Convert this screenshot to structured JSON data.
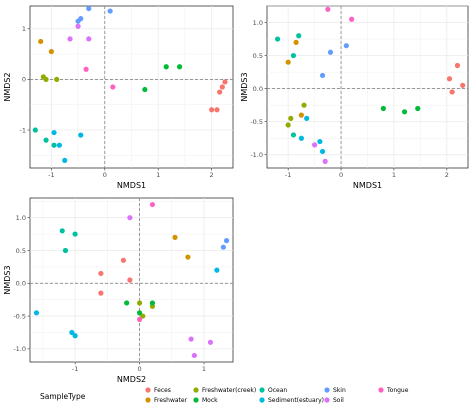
{
  "colors": {
    "Feces": "#F8766D",
    "Freshwater": "#D39200",
    "Freshwater(creek)": "#93AA00",
    "Mock": "#00BA38",
    "Ocean": "#00C19F",
    "Sediment(estuary)": "#00B9E3",
    "Skin": "#619CFF",
    "Soil": "#DB72FB",
    "Tongue": "#FF61C3"
  },
  "legend": {
    "title": "SampleType",
    "items": [
      "Feces",
      "Freshwater",
      "Freshwater(creek)",
      "Mock",
      "Ocean",
      "Sediment(estuary)",
      "Skin",
      "Soil",
      "Tongue"
    ]
  },
  "chart_data": [
    {
      "type": "scatter",
      "xlabel": "NMDS1",
      "ylabel": "NMDS2",
      "xlim": [
        -1.4,
        2.4
      ],
      "ylim": [
        -1.75,
        1.45
      ],
      "xticks": [
        -1,
        0,
        1,
        2
      ],
      "yticks": [
        -1,
        0,
        1
      ],
      "grid": true,
      "zero_lines": true,
      "points": [
        {
          "group": "Feces",
          "x": 2.0,
          "y": -0.6
        },
        {
          "group": "Feces",
          "x": 2.1,
          "y": -0.6
        },
        {
          "group": "Feces",
          "x": 2.15,
          "y": -0.25
        },
        {
          "group": "Feces",
          "x": 2.2,
          "y": -0.15
        },
        {
          "group": "Feces",
          "x": 2.25,
          "y": -0.05
        },
        {
          "group": "Freshwater",
          "x": -1.2,
          "y": 0.75
        },
        {
          "group": "Freshwater",
          "x": -1.0,
          "y": 0.55
        },
        {
          "group": "Freshwater(creek)",
          "x": -1.15,
          "y": 0.05
        },
        {
          "group": "Freshwater(creek)",
          "x": -1.1,
          "y": 0.0
        },
        {
          "group": "Freshwater(creek)",
          "x": -0.9,
          "y": 0.0
        },
        {
          "group": "Mock",
          "x": 0.75,
          "y": -0.2
        },
        {
          "group": "Mock",
          "x": 1.15,
          "y": 0.25
        },
        {
          "group": "Mock",
          "x": 1.4,
          "y": 0.25
        },
        {
          "group": "Ocean",
          "x": -1.3,
          "y": -1.0
        },
        {
          "group": "Ocean",
          "x": -1.1,
          "y": -1.2
        },
        {
          "group": "Ocean",
          "x": -0.95,
          "y": -1.3
        },
        {
          "group": "Sediment(estuary)",
          "x": -0.95,
          "y": -1.05
        },
        {
          "group": "Sediment(estuary)",
          "x": -0.85,
          "y": -1.3
        },
        {
          "group": "Sediment(estuary)",
          "x": -0.75,
          "y": -1.6
        },
        {
          "group": "Sediment(estuary)",
          "x": -0.45,
          "y": -1.1
        },
        {
          "group": "Skin",
          "x": -0.5,
          "y": 1.15
        },
        {
          "group": "Skin",
          "x": -0.45,
          "y": 1.2
        },
        {
          "group": "Skin",
          "x": -0.3,
          "y": 1.4
        },
        {
          "group": "Skin",
          "x": 0.1,
          "y": 1.35
        },
        {
          "group": "Soil",
          "x": -0.65,
          "y": 0.8
        },
        {
          "group": "Soil",
          "x": -0.5,
          "y": 1.05
        },
        {
          "group": "Soil",
          "x": -0.3,
          "y": 0.8
        },
        {
          "group": "Tongue",
          "x": -0.35,
          "y": 0.2
        },
        {
          "group": "Tongue",
          "x": 0.15,
          "y": -0.15
        }
      ]
    },
    {
      "type": "scatter",
      "xlabel": "NMDS1",
      "ylabel": "NMDS3",
      "xlim": [
        -1.4,
        2.4
      ],
      "ylim": [
        -1.2,
        1.25
      ],
      "xticks": [
        -1,
        0,
        1,
        2
      ],
      "yticks": [
        -1,
        -0.5,
        0,
        0.5,
        1
      ],
      "ytick_labels": [
        "-1.0",
        "-0.5",
        "0.0",
        "0.5",
        "1.0"
      ],
      "grid": true,
      "zero_lines": true,
      "points": [
        {
          "group": "Feces",
          "x": 2.05,
          "y": 0.15
        },
        {
          "group": "Feces",
          "x": 2.1,
          "y": -0.05
        },
        {
          "group": "Feces",
          "x": 2.2,
          "y": 0.35
        },
        {
          "group": "Feces",
          "x": 2.3,
          "y": 0.05
        },
        {
          "group": "Freshwater",
          "x": -1.0,
          "y": 0.4
        },
        {
          "group": "Freshwater",
          "x": -0.85,
          "y": 0.7
        },
        {
          "group": "Freshwater",
          "x": -0.75,
          "y": -0.4
        },
        {
          "group": "Freshwater(creek)",
          "x": -1.0,
          "y": -0.55
        },
        {
          "group": "Freshwater(creek)",
          "x": -0.95,
          "y": -0.45
        },
        {
          "group": "Freshwater(creek)",
          "x": -0.7,
          "y": -0.25
        },
        {
          "group": "Mock",
          "x": 0.8,
          "y": -0.3
        },
        {
          "group": "Mock",
          "x": 1.2,
          "y": -0.35
        },
        {
          "group": "Mock",
          "x": 1.45,
          "y": -0.3
        },
        {
          "group": "Ocean",
          "x": -1.2,
          "y": 0.75
        },
        {
          "group": "Ocean",
          "x": -0.9,
          "y": 0.5
        },
        {
          "group": "Ocean",
          "x": -0.8,
          "y": 0.8
        },
        {
          "group": "Ocean",
          "x": -0.9,
          "y": -0.7
        },
        {
          "group": "Sediment(estuary)",
          "x": -0.75,
          "y": -0.75
        },
        {
          "group": "Sediment(estuary)",
          "x": -0.65,
          "y": -0.45
        },
        {
          "group": "Sediment(estuary)",
          "x": -0.4,
          "y": -0.8
        },
        {
          "group": "Sediment(estuary)",
          "x": -0.35,
          "y": -0.95
        },
        {
          "group": "Skin",
          "x": -0.35,
          "y": 0.2
        },
        {
          "group": "Skin",
          "x": -0.2,
          "y": 0.55
        },
        {
          "group": "Skin",
          "x": 0.1,
          "y": 0.65
        },
        {
          "group": "Soil",
          "x": -0.5,
          "y": -0.85
        },
        {
          "group": "Soil",
          "x": -0.3,
          "y": -1.1
        },
        {
          "group": "Tongue",
          "x": -0.25,
          "y": 1.2
        },
        {
          "group": "Tongue",
          "x": 0.2,
          "y": 1.05
        }
      ]
    },
    {
      "type": "scatter",
      "xlabel": "NMDS2",
      "ylabel": "NMDS3",
      "xlim": [
        -1.7,
        1.45
      ],
      "ylim": [
        -1.2,
        1.3
      ],
      "xticks": [
        -1,
        0,
        1
      ],
      "yticks": [
        -1,
        -0.5,
        0,
        0.5,
        1
      ],
      "ytick_labels": [
        "-1.0",
        "-0.5",
        "0.0",
        "0.5",
        "1.0"
      ],
      "grid": true,
      "zero_lines": true,
      "points": [
        {
          "group": "Feces",
          "x": -0.6,
          "y": 0.15
        },
        {
          "group": "Feces",
          "x": -0.6,
          "y": -0.15
        },
        {
          "group": "Feces",
          "x": -0.25,
          "y": 0.35
        },
        {
          "group": "Feces",
          "x": -0.15,
          "y": 0.05
        },
        {
          "group": "Freshwater",
          "x": 0.55,
          "y": 0.7
        },
        {
          "group": "Freshwater",
          "x": 0.75,
          "y": 0.4
        },
        {
          "group": "Freshwater(creek)",
          "x": 0.0,
          "y": -0.3
        },
        {
          "group": "Freshwater(creek)",
          "x": 0.05,
          "y": -0.5
        },
        {
          "group": "Freshwater(creek)",
          "x": 0.2,
          "y": -0.35
        },
        {
          "group": "Mock",
          "x": -0.2,
          "y": -0.3
        },
        {
          "group": "Mock",
          "x": 0.0,
          "y": -0.45
        },
        {
          "group": "Mock",
          "x": 0.2,
          "y": -0.3
        },
        {
          "group": "Ocean",
          "x": -1.2,
          "y": 0.8
        },
        {
          "group": "Ocean",
          "x": -1.15,
          "y": 0.5
        },
        {
          "group": "Ocean",
          "x": -1.0,
          "y": 0.75
        },
        {
          "group": "Sediment(estuary)",
          "x": -1.6,
          "y": -0.45
        },
        {
          "group": "Sediment(estuary)",
          "x": -1.05,
          "y": -0.75
        },
        {
          "group": "Sediment(estuary)",
          "x": -1.0,
          "y": -0.8
        },
        {
          "group": "Sediment(estuary)",
          "x": 1.2,
          "y": 0.2
        },
        {
          "group": "Skin",
          "x": 1.3,
          "y": 0.55
        },
        {
          "group": "Skin",
          "x": 1.35,
          "y": 0.65
        },
        {
          "group": "Soil",
          "x": -0.15,
          "y": 1.0
        },
        {
          "group": "Soil",
          "x": 0.8,
          "y": -0.85
        },
        {
          "group": "Soil",
          "x": 0.85,
          "y": -1.1
        },
        {
          "group": "Soil",
          "x": 1.1,
          "y": -0.9
        },
        {
          "group": "Tongue",
          "x": 0.2,
          "y": 1.2
        },
        {
          "group": "Tongue",
          "x": 0.0,
          "y": -0.55
        }
      ]
    }
  ]
}
